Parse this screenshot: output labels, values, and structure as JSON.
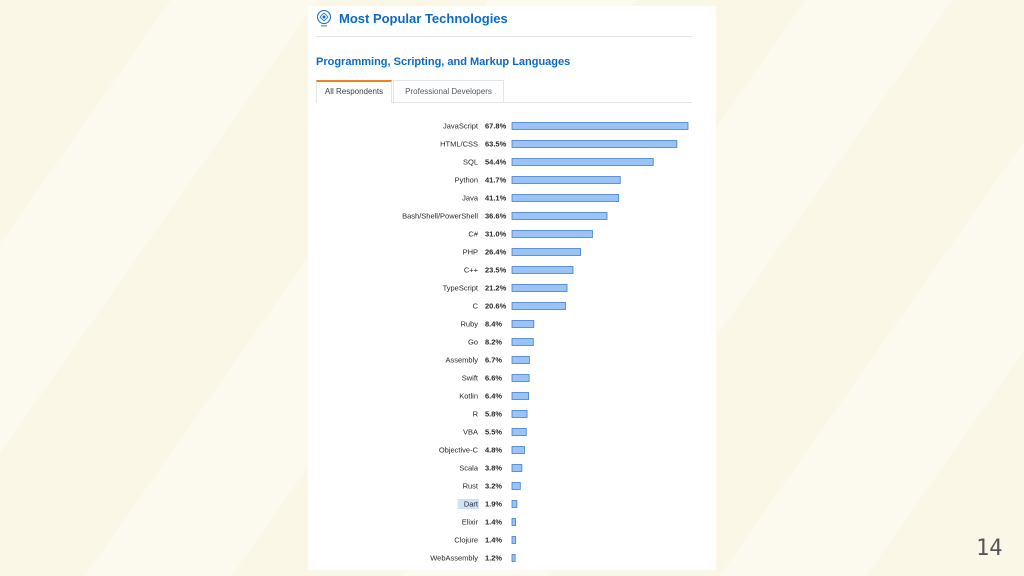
{
  "header": {
    "title": "Most Popular Technologies"
  },
  "section": {
    "title": "Programming, Scripting, and Markup Languages"
  },
  "tabs": [
    {
      "label": "All Respondents",
      "active": true
    },
    {
      "label": "Professional Developers",
      "active": false
    }
  ],
  "slide": {
    "number": "14"
  },
  "colors": {
    "bar_fill": "#9cc3f2",
    "bar_stroke": "#3d7fd6",
    "title": "#0c6bbf",
    "active_tab": "#f48024",
    "highlight": "#cfe3f7"
  },
  "chart_data": {
    "type": "bar",
    "orientation": "horizontal",
    "categories": [
      "JavaScript",
      "HTML/CSS",
      "SQL",
      "Python",
      "Java",
      "Bash/Shell/PowerShell",
      "C#",
      "PHP",
      "C++",
      "TypeScript",
      "C",
      "Ruby",
      "Go",
      "Assembly",
      "Swift",
      "Kotlin",
      "R",
      "VBA",
      "Objective-C",
      "Scala",
      "Rust",
      "Dart",
      "Elixir",
      "Clojure",
      "WebAssembly"
    ],
    "values": [
      67.8,
      63.5,
      54.4,
      41.7,
      41.1,
      36.6,
      31.0,
      26.4,
      23.5,
      21.2,
      20.6,
      8.4,
      8.2,
      6.7,
      6.6,
      6.4,
      5.8,
      5.5,
      4.8,
      3.8,
      3.2,
      1.9,
      1.4,
      1.4,
      1.2
    ],
    "value_labels": [
      "67.8%",
      "63.5%",
      "54.4%",
      "41.7%",
      "41.1%",
      "36.6%",
      "31.0%",
      "26.4%",
      "23.5%",
      "21.2%",
      "20.6%",
      "8.4%",
      "8.2%",
      "6.7%",
      "6.6%",
      "6.4%",
      "5.8%",
      "5.5%",
      "4.8%",
      "3.8%",
      "3.2%",
      "1.9%",
      "1.4%",
      "1.4%",
      "1.2%"
    ],
    "highlighted_category": "Dart",
    "xlim": [
      0,
      67.8
    ],
    "grid": false,
    "legend": "none"
  }
}
